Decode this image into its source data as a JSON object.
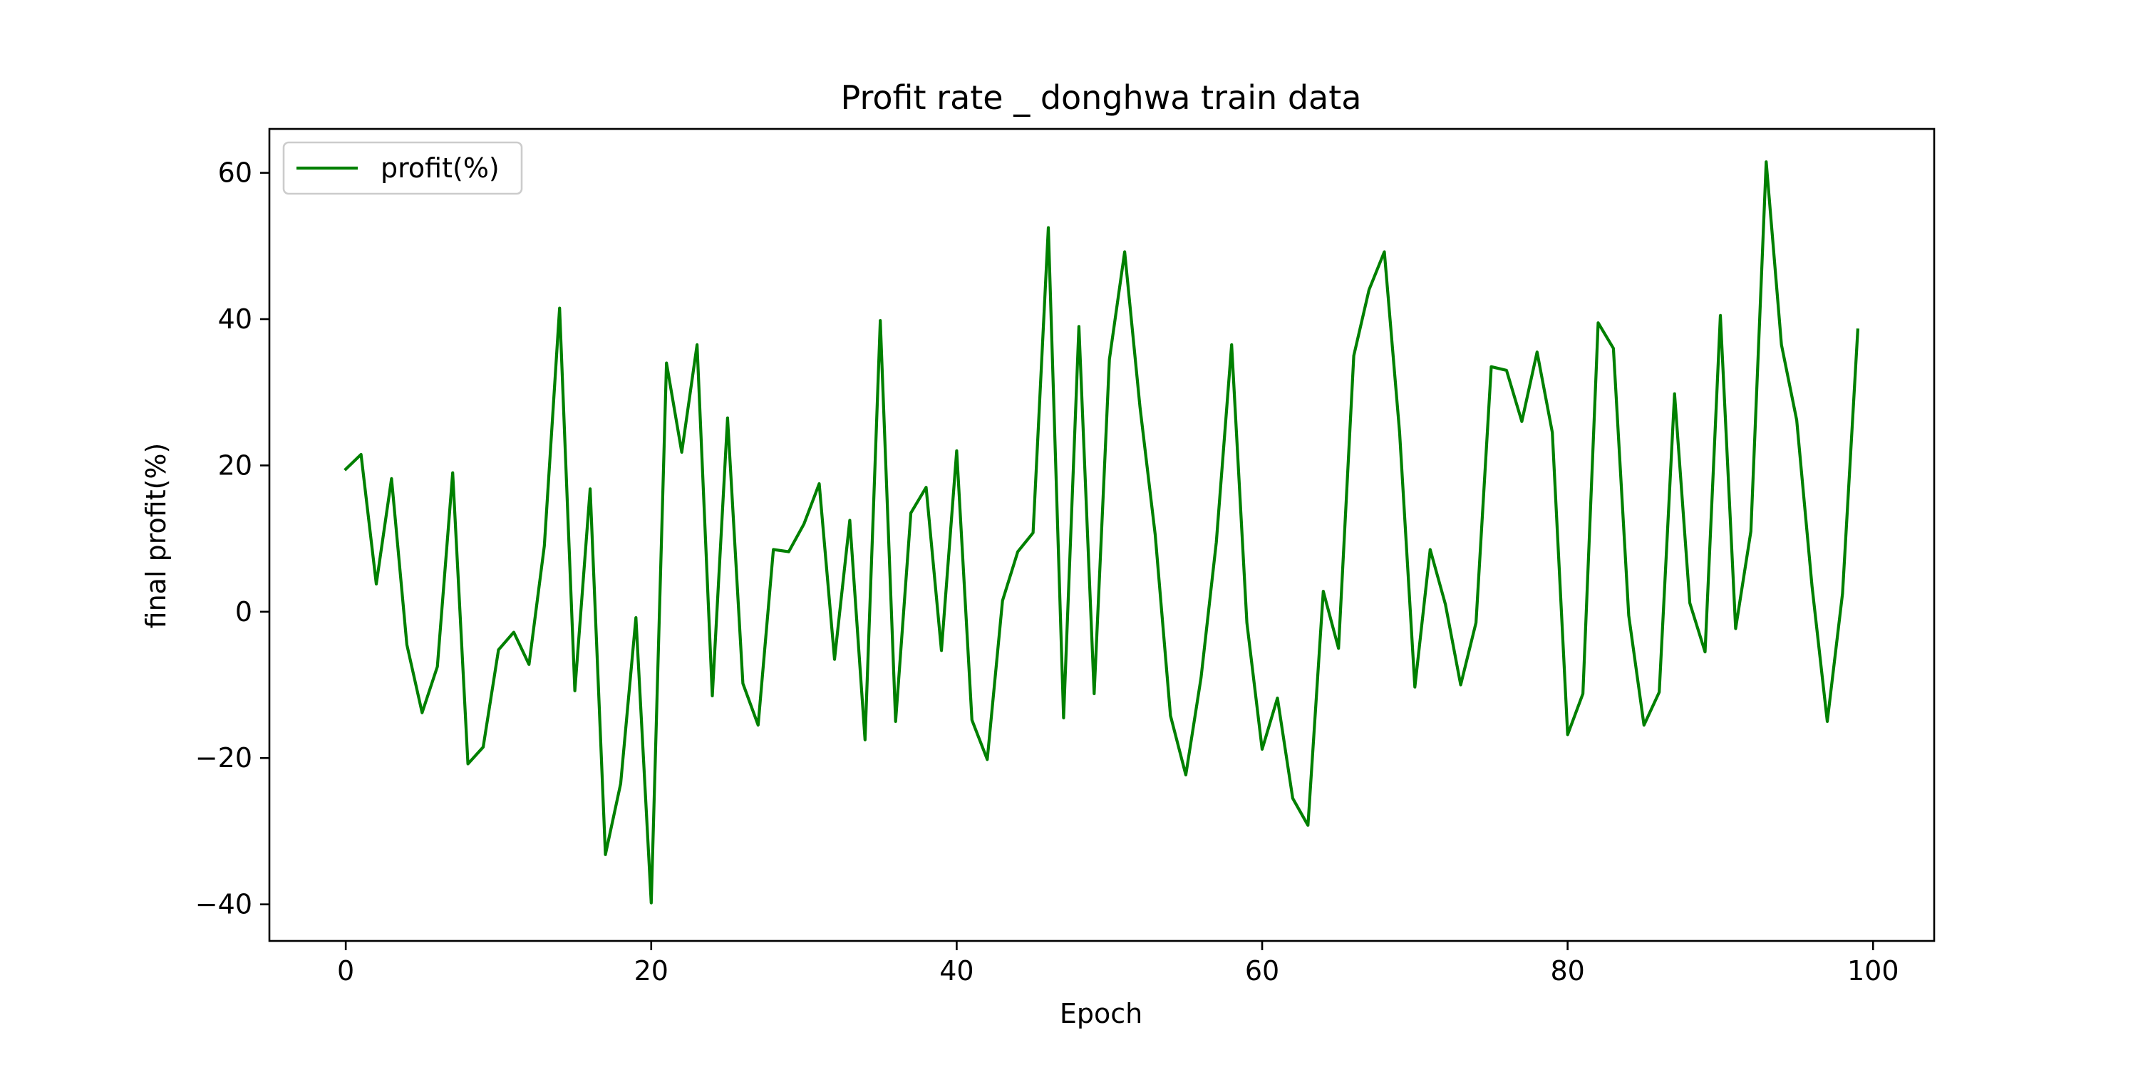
{
  "chart_data": {
    "type": "line",
    "title": "Profit rate _ donghwa train data",
    "xlabel": "Epoch",
    "ylabel": "final profit(%)",
    "xlim": [
      -5,
      104
    ],
    "ylim": [
      -45,
      66
    ],
    "xticks": [
      0,
      20,
      40,
      60,
      80,
      100
    ],
    "yticks": [
      -40,
      -20,
      0,
      20,
      40,
      60
    ],
    "xtick_labels": [
      "0",
      "20",
      "40",
      "60",
      "80",
      "100"
    ],
    "ytick_labels": [
      "−40",
      "−20",
      "0",
      "20",
      "40",
      "60"
    ],
    "grid": false,
    "legend_position": "upper-left",
    "series": [
      {
        "name": "profit(%)",
        "color": "#008000",
        "x": [
          0,
          1,
          2,
          3,
          4,
          5,
          6,
          7,
          8,
          9,
          10,
          11,
          12,
          13,
          14,
          15,
          16,
          17,
          18,
          19,
          20,
          21,
          22,
          23,
          24,
          25,
          26,
          27,
          28,
          29,
          30,
          31,
          32,
          33,
          34,
          35,
          36,
          37,
          38,
          39,
          40,
          41,
          42,
          43,
          44,
          45,
          46,
          47,
          48,
          49,
          50,
          51,
          52,
          53,
          54,
          55,
          56,
          57,
          58,
          59,
          60,
          61,
          62,
          63,
          64,
          65,
          66,
          67,
          68,
          69,
          70,
          71,
          72,
          73,
          74,
          75,
          76,
          77,
          78,
          79,
          80,
          81,
          82,
          83,
          84,
          85,
          86,
          87,
          88,
          89,
          90,
          91,
          92,
          93,
          94,
          95,
          96,
          97,
          98,
          99
        ],
        "y": [
          19.5,
          21.5,
          3.8,
          18.2,
          -4.5,
          -13.8,
          -7.5,
          19.0,
          -20.8,
          -18.5,
          -5.2,
          -2.8,
          -7.2,
          9.0,
          41.5,
          -10.8,
          16.8,
          -33.2,
          -23.5,
          -0.8,
          -39.8,
          34.0,
          21.8,
          36.5,
          -11.5,
          26.5,
          -9.8,
          -15.5,
          8.5,
          8.2,
          12.0,
          17.5,
          -6.5,
          12.5,
          -17.5,
          39.8,
          -15.0,
          13.5,
          17.0,
          -5.3,
          22.0,
          -14.8,
          -20.2,
          1.5,
          8.2,
          10.8,
          52.5,
          -14.5,
          39.0,
          -11.2,
          34.5,
          49.2,
          28.0,
          10.5,
          -14.2,
          -22.3,
          -9.0,
          9.5,
          36.5,
          -1.5,
          -18.8,
          -11.8,
          -25.5,
          -29.2,
          2.8,
          -5.0,
          35.0,
          44.0,
          49.2,
          24.5,
          -10.3,
          8.5,
          1.0,
          -10.0,
          -1.5,
          33.5,
          33.0,
          26.0,
          35.5,
          24.5,
          -16.8,
          -11.2,
          39.5,
          36.0,
          -0.5,
          -15.5,
          -11.0,
          29.8,
          1.2,
          -5.5,
          40.5,
          -2.3,
          11.0,
          61.5,
          36.5,
          26.2,
          3.5,
          -15.0,
          2.5,
          38.5
        ]
      }
    ]
  }
}
